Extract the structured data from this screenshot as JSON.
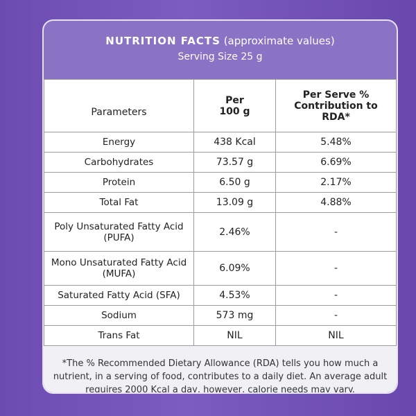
{
  "header": {
    "title": "NUTRITION FACTS",
    "title_note": "(approximate values)",
    "serving": "Serving Size 25 g"
  },
  "table": {
    "columns": [
      [
        "Parameters"
      ],
      [
        "Per",
        "100 g"
      ],
      [
        "Per Serve %",
        "Contribution to RDA*"
      ]
    ],
    "rows": [
      [
        "Energy",
        "438 Kcal",
        "5.48%"
      ],
      [
        "Carbohydrates",
        "73.57 g",
        "6.69%"
      ],
      [
        "Protein",
        "6.50 g",
        "2.17%"
      ],
      [
        "Total Fat",
        "13.09 g",
        "4.88%"
      ],
      [
        "Poly Unsaturated Fatty Acid (PUFA)",
        "2.46%",
        "-"
      ],
      [
        "Mono Unsaturated Fatty Acid (MUFA)",
        "6.09%",
        "-"
      ],
      [
        "Saturated Fatty Acid (SFA)",
        "4.53%",
        "-"
      ],
      [
        "Sodium",
        "573 mg",
        "-"
      ],
      [
        "Trans Fat",
        "NIL",
        "NIL"
      ]
    ]
  },
  "footnote": "*The % Recommended Dietary Allowance (RDA) tells you how much a nutrient, in a serving of food, contributes to a daily diet. An average adult requires 2000 Kcal a day, however, calorie needs may vary."
}
